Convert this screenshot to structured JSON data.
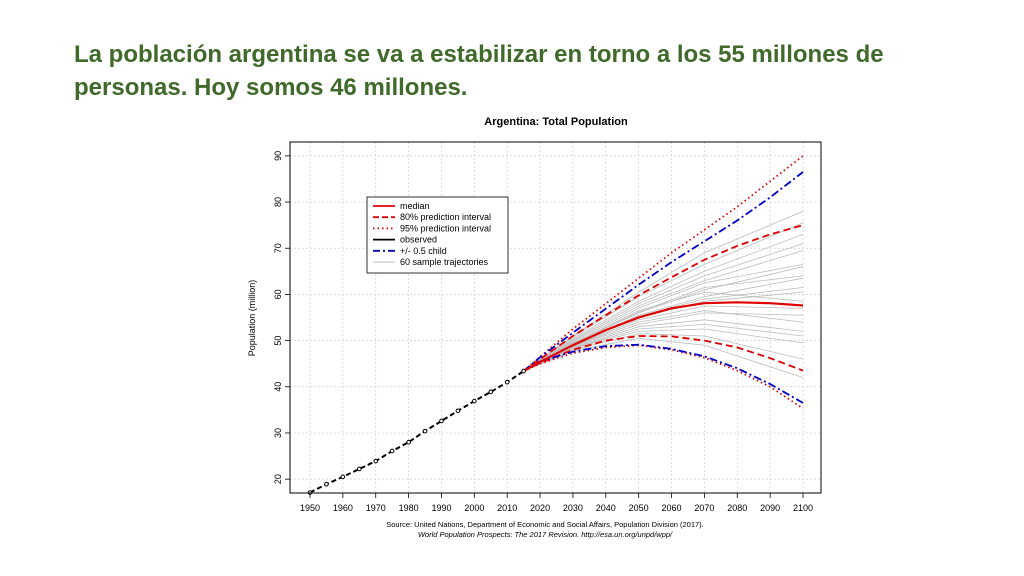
{
  "slide": {
    "title_line1": "La población argentina se va a estabilizar en torno a los 55 millones de",
    "title_line2": "personas. Hoy somos 46 millones."
  },
  "colors": {
    "title": "#3f6a2a",
    "median": "#e00000",
    "child": "#0000cc",
    "observed": "#000000",
    "samples": "#bdbdbd"
  },
  "chart_data": {
    "type": "line",
    "title": "Argentina: Total Population",
    "xlabel": "",
    "ylabel": "Population (million)",
    "xlim": [
      1950,
      2100
    ],
    "ylim": [
      17,
      93
    ],
    "x_ticks": [
      1950,
      1960,
      1970,
      1980,
      1990,
      2000,
      2010,
      2020,
      2030,
      2040,
      2050,
      2060,
      2070,
      2080,
      2090,
      2100
    ],
    "y_ticks": [
      20,
      30,
      40,
      50,
      60,
      70,
      80,
      90
    ],
    "grid": true,
    "legend": {
      "position": "top-left",
      "entries": [
        {
          "label": "median",
          "style": "solid",
          "color": "#e00000"
        },
        {
          "label": "80% prediction interval",
          "style": "dashed",
          "color": "#e00000"
        },
        {
          "label": "95% prediction interval",
          "style": "dotted",
          "color": "#e00000"
        },
        {
          "label": "observed",
          "style": "solid",
          "color": "#000000"
        },
        {
          "label": "+/- 0.5 child",
          "style": "dashdot",
          "color": "#0000cc"
        },
        {
          "label": "60 sample trajectories",
          "style": "solid",
          "color": "#bdbdbd"
        }
      ]
    },
    "series": [
      {
        "name": "observed",
        "style": "observed",
        "x": [
          1950,
          1955,
          1960,
          1965,
          1970,
          1975,
          1980,
          1985,
          1990,
          1995,
          2000,
          2005,
          2010,
          2015
        ],
        "values": [
          17.1,
          18.9,
          20.5,
          22.2,
          23.9,
          26.1,
          28.0,
          30.4,
          32.6,
          34.8,
          36.9,
          38.9,
          41.0,
          43.4
        ]
      },
      {
        "name": "median",
        "style": "median",
        "x": [
          2015,
          2020,
          2030,
          2040,
          2050,
          2060,
          2070,
          2080,
          2090,
          2100
        ],
        "values": [
          43.4,
          45.4,
          49.0,
          52.3,
          55.0,
          57.0,
          58.1,
          58.3,
          58.1,
          57.6
        ]
      },
      {
        "name": "80% upper",
        "style": "pi80",
        "x": [
          2015,
          2020,
          2030,
          2040,
          2050,
          2060,
          2070,
          2080,
          2090,
          2100
        ],
        "values": [
          43.4,
          46.0,
          51.0,
          55.5,
          59.8,
          63.7,
          67.5,
          70.5,
          73.0,
          75.0
        ]
      },
      {
        "name": "80% lower",
        "style": "pi80",
        "x": [
          2015,
          2020,
          2030,
          2040,
          2050,
          2060,
          2070,
          2080,
          2090,
          2100
        ],
        "values": [
          43.4,
          45.2,
          48.0,
          50.0,
          51.0,
          50.9,
          50.0,
          48.5,
          46.2,
          43.5
        ]
      },
      {
        "name": "95% upper",
        "style": "pi95",
        "x": [
          2015,
          2020,
          2030,
          2040,
          2050,
          2060,
          2070,
          2080,
          2090,
          2100
        ],
        "values": [
          43.4,
          46.5,
          52.5,
          58.0,
          63.5,
          69.0,
          74.0,
          79.0,
          84.5,
          90.0
        ]
      },
      {
        "name": "95% lower",
        "style": "pi95",
        "x": [
          2015,
          2020,
          2030,
          2040,
          2050,
          2060,
          2070,
          2080,
          2090,
          2100
        ],
        "values": [
          43.4,
          45.0,
          47.3,
          48.5,
          49.0,
          48.0,
          46.3,
          43.5,
          40.0,
          35.3
        ]
      },
      {
        "name": "+0.5 child",
        "style": "child",
        "x": [
          2015,
          2020,
          2030,
          2040,
          2050,
          2060,
          2070,
          2080,
          2090,
          2100
        ],
        "values": [
          43.4,
          46.4,
          51.7,
          56.9,
          62.1,
          67.0,
          71.5,
          76.0,
          81.0,
          86.5
        ]
      },
      {
        "name": "-0.5 child",
        "style": "child",
        "x": [
          2015,
          2020,
          2030,
          2040,
          2050,
          2060,
          2070,
          2080,
          2090,
          2100
        ],
        "values": [
          43.4,
          45.5,
          47.6,
          48.8,
          49.1,
          48.2,
          46.6,
          44.0,
          40.6,
          36.5
        ]
      },
      {
        "name": "sample 1",
        "style": "sample",
        "x": [
          2015,
          2030,
          2050,
          2070,
          2100
        ],
        "values": [
          43.4,
          50.5,
          58.5,
          65.0,
          73.0
        ]
      },
      {
        "name": "sample 2",
        "style": "sample",
        "x": [
          2015,
          2030,
          2050,
          2070,
          2100
        ],
        "values": [
          43.4,
          49.5,
          56.0,
          61.0,
          66.0
        ]
      },
      {
        "name": "sample 3",
        "style": "sample",
        "x": [
          2015,
          2030,
          2050,
          2070,
          2100
        ],
        "values": [
          43.4,
          48.5,
          53.0,
          54.5,
          52.0
        ]
      },
      {
        "name": "sample 4",
        "style": "sample",
        "x": [
          2015,
          2030,
          2050,
          2070,
          2100
        ],
        "values": [
          43.4,
          49.0,
          55.0,
          58.5,
          60.5
        ]
      },
      {
        "name": "sample 5",
        "style": "sample",
        "x": [
          2015,
          2030,
          2050,
          2070,
          2100
        ],
        "values": [
          43.4,
          48.0,
          51.5,
          51.0,
          46.0
        ]
      },
      {
        "name": "sample 6",
        "style": "sample",
        "x": [
          2015,
          2030,
          2050,
          2070,
          2100
        ],
        "values": [
          43.4,
          51.0,
          60.5,
          69.0,
          78.0
        ]
      },
      {
        "name": "sample 7",
        "style": "sample",
        "x": [
          2015,
          2030,
          2050,
          2070,
          2100
        ],
        "values": [
          43.4,
          49.2,
          55.5,
          59.5,
          63.5
        ]
      },
      {
        "name": "sample 8",
        "style": "sample",
        "x": [
          2015,
          2030,
          2050,
          2070,
          2100
        ],
        "values": [
          43.4,
          48.7,
          53.5,
          56.0,
          55.5
        ]
      },
      {
        "name": "sample 9",
        "style": "sample",
        "x": [
          2015,
          2030,
          2050,
          2070,
          2100
        ],
        "values": [
          43.4,
          50.0,
          57.5,
          63.0,
          69.5
        ]
      },
      {
        "name": "sample 10",
        "style": "sample",
        "x": [
          2015,
          2030,
          2050,
          2070,
          2100
        ],
        "values": [
          43.4,
          47.8,
          50.5,
          49.0,
          42.0
        ]
      },
      {
        "name": "sample 11",
        "style": "sample",
        "x": [
          2015,
          2030,
          2050,
          2070,
          2100
        ],
        "values": [
          43.4,
          49.4,
          56.5,
          60.5,
          58.5
        ]
      },
      {
        "name": "sample 12",
        "style": "sample",
        "x": [
          2015,
          2030,
          2050,
          2070,
          2100
        ],
        "values": [
          43.4,
          48.9,
          54.5,
          57.5,
          57.0
        ]
      },
      {
        "name": "sample 13",
        "style": "sample",
        "x": [
          2015,
          2030,
          2050,
          2070,
          2100
        ],
        "values": [
          43.4,
          50.8,
          59.5,
          66.5,
          75.5
        ]
      },
      {
        "name": "sample 14",
        "style": "sample",
        "x": [
          2015,
          2030,
          2050,
          2070,
          2100
        ],
        "values": [
          43.4,
          48.3,
          52.0,
          52.5,
          49.5
        ]
      },
      {
        "name": "sample 15",
        "style": "sample",
        "x": [
          2015,
          2030,
          2050,
          2070,
          2100
        ],
        "values": [
          43.4,
          49.7,
          57.0,
          62.5,
          66.5
        ]
      },
      {
        "name": "sample 16",
        "style": "sample",
        "x": [
          2015,
          2030,
          2050,
          2070,
          2100
        ],
        "values": [
          43.4,
          49.1,
          55.3,
          59.0,
          61.5
        ]
      },
      {
        "name": "sample 17",
        "style": "sample",
        "x": [
          2015,
          2030,
          2050,
          2070,
          2100
        ],
        "values": [
          43.4,
          48.4,
          52.5,
          53.5,
          51.0
        ]
      },
      {
        "name": "sample 18",
        "style": "sample",
        "x": [
          2015,
          2030,
          2050,
          2070,
          2100
        ],
        "values": [
          43.4,
          50.2,
          58.0,
          64.0,
          71.0
        ]
      },
      {
        "name": "sample 19",
        "style": "sample",
        "x": [
          2015,
          2030,
          2050,
          2070,
          2100
        ],
        "values": [
          43.4,
          48.8,
          54.0,
          56.5,
          54.0
        ]
      },
      {
        "name": "sample 20",
        "style": "sample",
        "x": [
          2015,
          2030,
          2050,
          2070,
          2100
        ],
        "values": [
          43.4,
          49.3,
          56.2,
          61.5,
          64.0
        ]
      }
    ],
    "source_line1": "Source: United Nations, Department of Economic and Social Affairs, Population Division (2017).",
    "source_line2": "World Population Prospects: The 2017 Revision. http://esa.un.org/unpd/wpp/"
  }
}
